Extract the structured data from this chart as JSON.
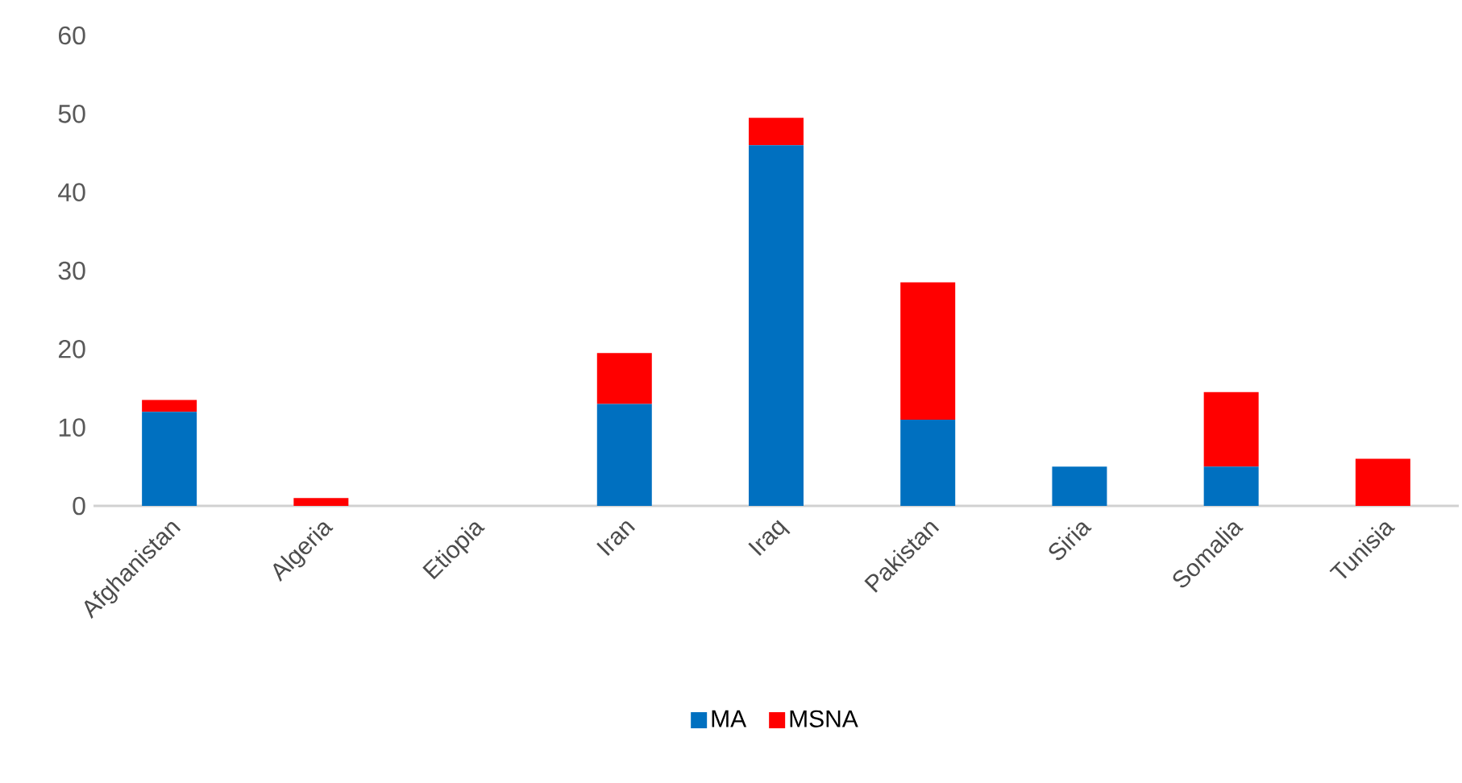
{
  "chart_data": {
    "type": "bar",
    "stacked": true,
    "categories": [
      "Afghanistan",
      "Algeria",
      "Etiopia",
      "Iran",
      "Iraq",
      "Pakistan",
      "Siria",
      "Somalia",
      "Tunisia"
    ],
    "series": [
      {
        "name": "MA",
        "color": "#0070c0",
        "values": [
          12,
          0,
          0,
          13,
          46,
          11,
          5,
          5,
          0
        ]
      },
      {
        "name": "MSNA",
        "color": "#ff0000",
        "values": [
          1.5,
          1,
          0,
          6.5,
          3.5,
          17.5,
          0,
          9.5,
          6
        ]
      }
    ],
    "ylim": [
      0,
      60
    ],
    "yticks": [
      0,
      10,
      20,
      30,
      40,
      50,
      60
    ],
    "legend": "bottom"
  }
}
